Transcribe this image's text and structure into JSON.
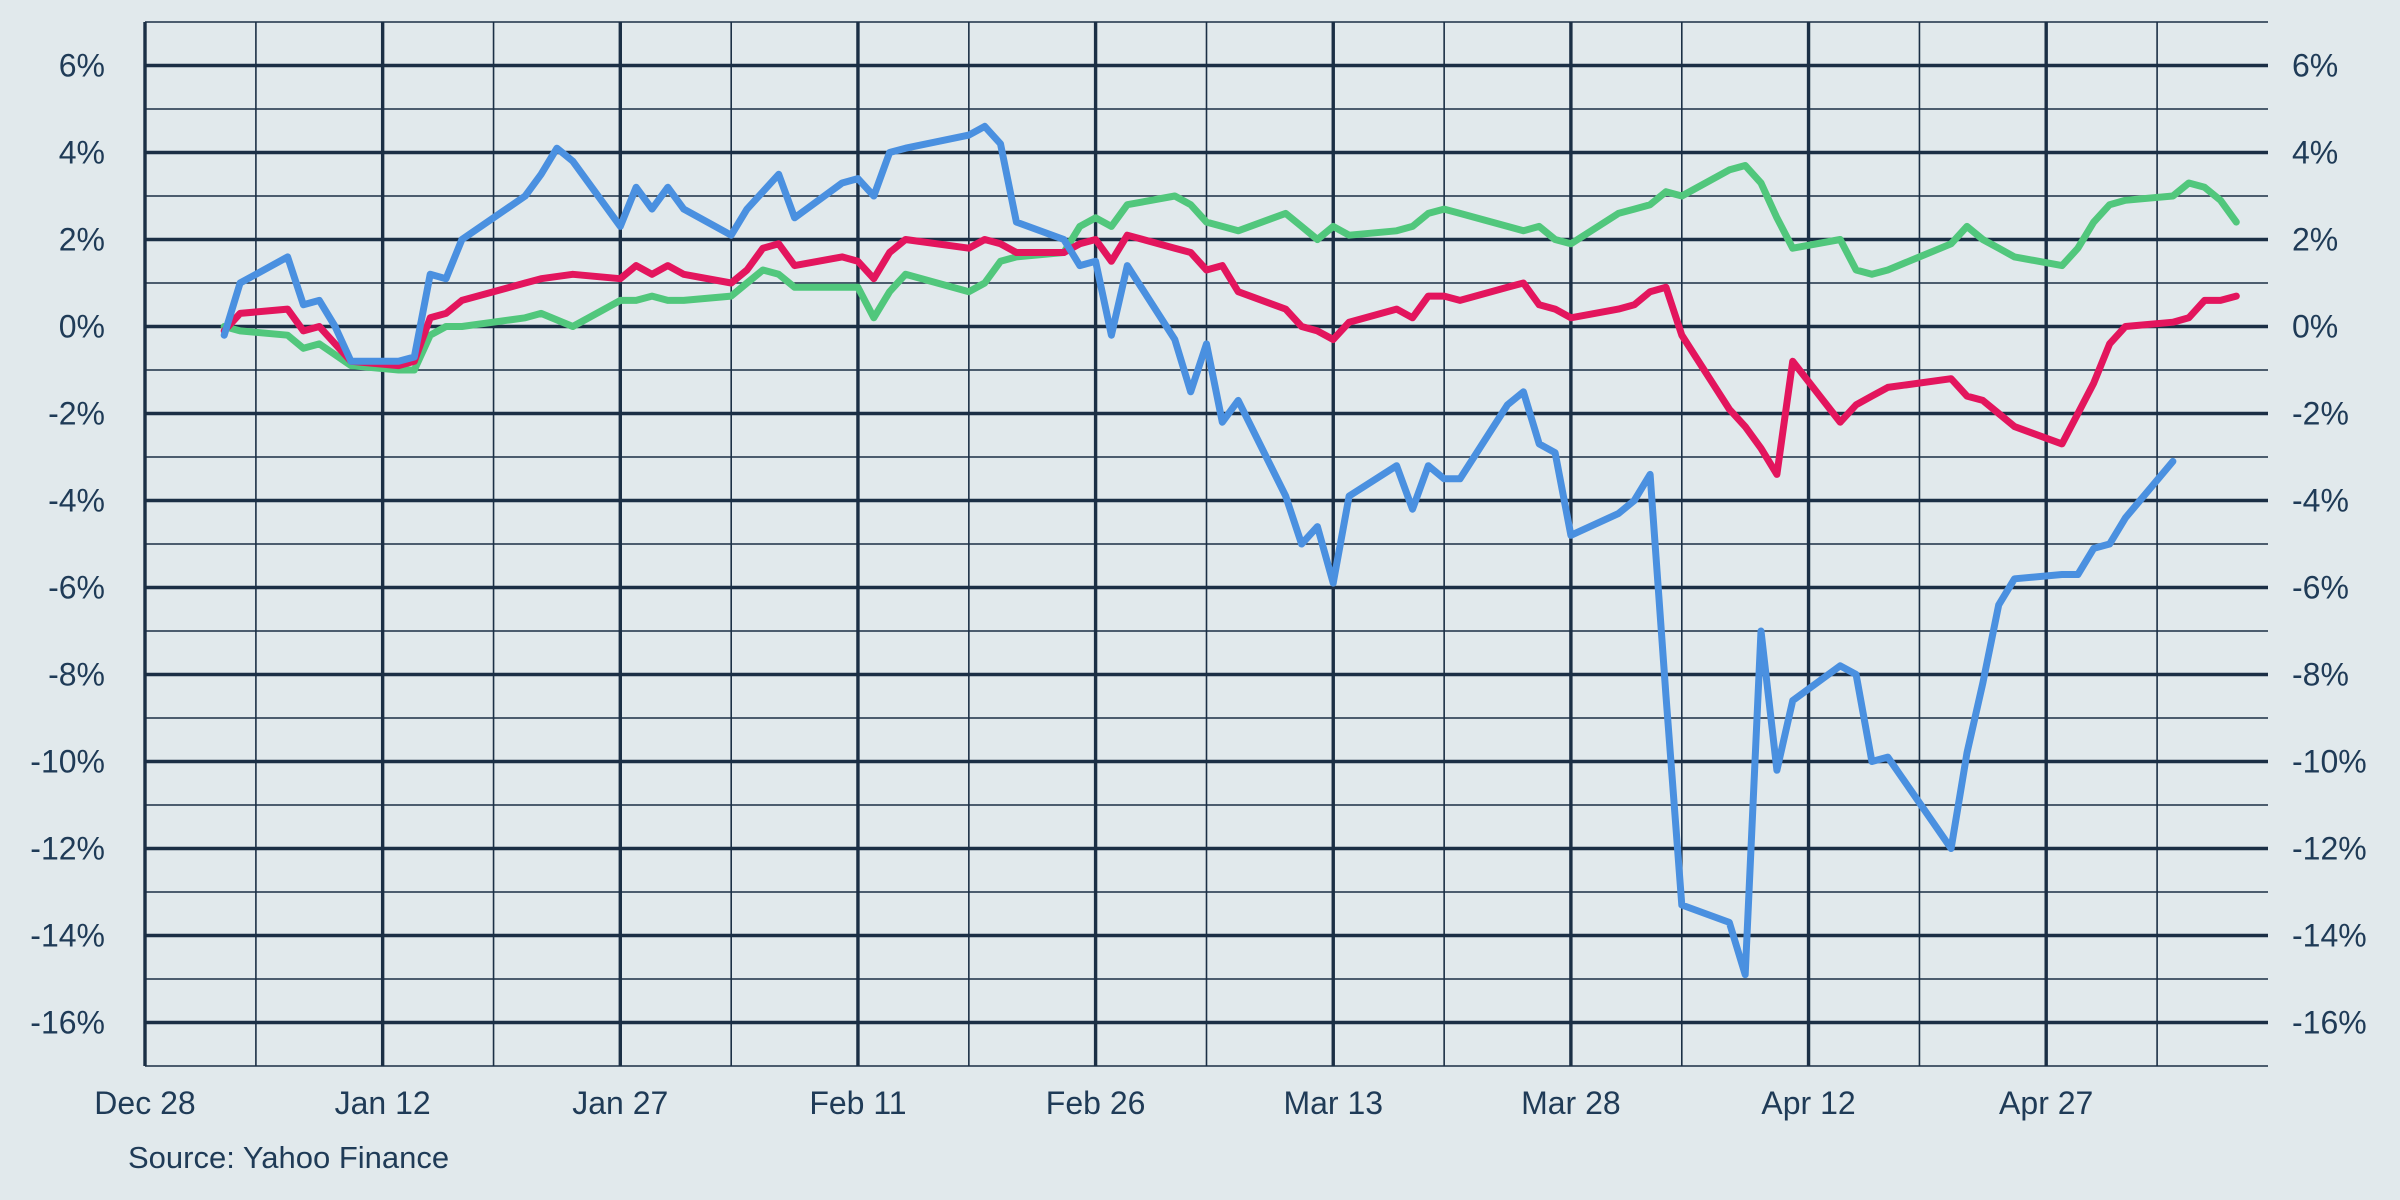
{
  "chart_data": {
    "type": "line",
    "title": "",
    "xlabel": "",
    "ylabel": "",
    "x_domain": [
      "2024-12-28",
      "2025-05-11"
    ],
    "ylim": [
      -17,
      7
    ],
    "x_ticks": [
      {
        "date": "2024-12-28",
        "label": "Dec 28"
      },
      {
        "date": "2025-01-12",
        "label": "Jan 12"
      },
      {
        "date": "2025-01-27",
        "label": "Jan 27"
      },
      {
        "date": "2025-02-11",
        "label": "Feb 11"
      },
      {
        "date": "2025-02-26",
        "label": "Feb 26"
      },
      {
        "date": "2025-03-13",
        "label": "Mar 13"
      },
      {
        "date": "2025-03-28",
        "label": "Mar 28"
      },
      {
        "date": "2025-04-12",
        "label": "Apr 12"
      },
      {
        "date": "2025-04-27",
        "label": "Apr 27"
      }
    ],
    "x_minor_ticks": [
      "2025-01-04",
      "2025-01-19",
      "2025-02-03",
      "2025-02-18",
      "2025-03-05",
      "2025-03-20",
      "2025-04-04",
      "2025-04-19",
      "2025-05-04"
    ],
    "y_ticks": [
      6,
      4,
      2,
      0,
      -2,
      -4,
      -6,
      -8,
      -10,
      -12,
      -14,
      -16
    ],
    "y_tick_labels": [
      "6%",
      "4%",
      "2%",
      "0%",
      "-2%",
      "-4%",
      "-6%",
      "-8%",
      "-10%",
      "-12%",
      "-14%",
      "-16%"
    ],
    "y_axis_both_sides": true,
    "grid": true,
    "series": [
      {
        "color": "#51c77c",
        "points": [
          [
            "2025-01-02",
            0.0
          ],
          [
            "2025-01-03",
            -0.1
          ],
          [
            "2025-01-06",
            -0.2
          ],
          [
            "2025-01-07",
            -0.5
          ],
          [
            "2025-01-08",
            -0.4
          ],
          [
            "2025-01-10",
            -0.9
          ],
          [
            "2025-01-13",
            -1.0
          ],
          [
            "2025-01-14",
            -1.0
          ],
          [
            "2025-01-15",
            -0.2
          ],
          [
            "2025-01-16",
            0.0
          ],
          [
            "2025-01-17",
            0.0
          ],
          [
            "2025-01-21",
            0.2
          ],
          [
            "2025-01-22",
            0.3
          ],
          [
            "2025-01-24",
            0.0
          ],
          [
            "2025-01-27",
            0.6
          ],
          [
            "2025-01-28",
            0.6
          ],
          [
            "2025-01-29",
            0.7
          ],
          [
            "2025-01-30",
            0.6
          ],
          [
            "2025-01-31",
            0.6
          ],
          [
            "2025-02-03",
            0.7
          ],
          [
            "2025-02-04",
            1.0
          ],
          [
            "2025-02-05",
            1.3
          ],
          [
            "2025-02-06",
            1.2
          ],
          [
            "2025-02-07",
            0.9
          ],
          [
            "2025-02-10",
            0.9
          ],
          [
            "2025-02-11",
            0.9
          ],
          [
            "2025-02-12",
            0.2
          ],
          [
            "2025-02-13",
            0.8
          ],
          [
            "2025-02-14",
            1.2
          ],
          [
            "2025-02-18",
            0.8
          ],
          [
            "2025-02-19",
            1.0
          ],
          [
            "2025-02-20",
            1.5
          ],
          [
            "2025-02-21",
            1.6
          ],
          [
            "2025-02-24",
            1.7
          ],
          [
            "2025-02-25",
            2.3
          ],
          [
            "2025-02-26",
            2.5
          ],
          [
            "2025-02-27",
            2.3
          ],
          [
            "2025-02-28",
            2.8
          ],
          [
            "2025-03-03",
            3.0
          ],
          [
            "2025-03-04",
            2.8
          ],
          [
            "2025-03-05",
            2.4
          ],
          [
            "2025-03-06",
            2.3
          ],
          [
            "2025-03-07",
            2.2
          ],
          [
            "2025-03-10",
            2.6
          ],
          [
            "2025-03-11",
            2.3
          ],
          [
            "2025-03-12",
            2.0
          ],
          [
            "2025-03-13",
            2.3
          ],
          [
            "2025-03-14",
            2.1
          ],
          [
            "2025-03-17",
            2.2
          ],
          [
            "2025-03-18",
            2.3
          ],
          [
            "2025-03-19",
            2.6
          ],
          [
            "2025-03-20",
            2.7
          ],
          [
            "2025-03-21",
            2.6
          ],
          [
            "2025-03-24",
            2.3
          ],
          [
            "2025-03-25",
            2.2
          ],
          [
            "2025-03-26",
            2.3
          ],
          [
            "2025-03-27",
            2.0
          ],
          [
            "2025-03-28",
            1.9
          ],
          [
            "2025-03-31",
            2.6
          ],
          [
            "2025-04-01",
            2.7
          ],
          [
            "2025-04-02",
            2.8
          ],
          [
            "2025-04-03",
            3.1
          ],
          [
            "2025-04-04",
            3.0
          ],
          [
            "2025-04-07",
            3.6
          ],
          [
            "2025-04-08",
            3.7
          ],
          [
            "2025-04-09",
            3.3
          ],
          [
            "2025-04-10",
            2.5
          ],
          [
            "2025-04-11",
            1.8
          ],
          [
            "2025-04-14",
            2.0
          ],
          [
            "2025-04-15",
            1.3
          ],
          [
            "2025-04-16",
            1.2
          ],
          [
            "2025-04-17",
            1.3
          ],
          [
            "2025-04-21",
            1.9
          ],
          [
            "2025-04-22",
            2.3
          ],
          [
            "2025-04-23",
            2.0
          ],
          [
            "2025-04-24",
            1.8
          ],
          [
            "2025-04-25",
            1.6
          ],
          [
            "2025-04-28",
            1.4
          ],
          [
            "2025-04-29",
            1.8
          ],
          [
            "2025-04-30",
            2.4
          ],
          [
            "2025-05-01",
            2.8
          ],
          [
            "2025-05-02",
            2.9
          ],
          [
            "2025-05-05",
            3.0
          ],
          [
            "2025-05-06",
            3.3
          ],
          [
            "2025-05-07",
            3.2
          ],
          [
            "2025-05-08",
            2.9
          ],
          [
            "2025-05-09",
            2.4
          ]
        ]
      },
      {
        "color": "#e3155d",
        "points": [
          [
            "2025-01-02",
            -0.1
          ],
          [
            "2025-01-03",
            0.3
          ],
          [
            "2025-01-06",
            0.4
          ],
          [
            "2025-01-07",
            -0.1
          ],
          [
            "2025-01-08",
            0.0
          ],
          [
            "2025-01-10",
            -0.8
          ],
          [
            "2025-01-13",
            -0.9
          ],
          [
            "2025-01-14",
            -0.8
          ],
          [
            "2025-01-15",
            0.2
          ],
          [
            "2025-01-16",
            0.3
          ],
          [
            "2025-01-17",
            0.6
          ],
          [
            "2025-01-21",
            1.0
          ],
          [
            "2025-01-22",
            1.1
          ],
          [
            "2025-01-24",
            1.2
          ],
          [
            "2025-01-27",
            1.1
          ],
          [
            "2025-01-28",
            1.4
          ],
          [
            "2025-01-29",
            1.2
          ],
          [
            "2025-01-30",
            1.4
          ],
          [
            "2025-01-31",
            1.2
          ],
          [
            "2025-02-03",
            1.0
          ],
          [
            "2025-02-04",
            1.3
          ],
          [
            "2025-02-05",
            1.8
          ],
          [
            "2025-02-06",
            1.9
          ],
          [
            "2025-02-07",
            1.4
          ],
          [
            "2025-02-10",
            1.6
          ],
          [
            "2025-02-11",
            1.5
          ],
          [
            "2025-02-12",
            1.1
          ],
          [
            "2025-02-13",
            1.7
          ],
          [
            "2025-02-14",
            2.0
          ],
          [
            "2025-02-18",
            1.8
          ],
          [
            "2025-02-19",
            2.0
          ],
          [
            "2025-02-20",
            1.9
          ],
          [
            "2025-02-21",
            1.7
          ],
          [
            "2025-02-24",
            1.7
          ],
          [
            "2025-02-25",
            1.9
          ],
          [
            "2025-02-26",
            2.0
          ],
          [
            "2025-02-27",
            1.5
          ],
          [
            "2025-02-28",
            2.1
          ],
          [
            "2025-03-03",
            1.8
          ],
          [
            "2025-03-04",
            1.7
          ],
          [
            "2025-03-05",
            1.3
          ],
          [
            "2025-03-06",
            1.4
          ],
          [
            "2025-03-07",
            0.8
          ],
          [
            "2025-03-10",
            0.4
          ],
          [
            "2025-03-11",
            0.0
          ],
          [
            "2025-03-12",
            -0.1
          ],
          [
            "2025-03-13",
            -0.3
          ],
          [
            "2025-03-14",
            0.1
          ],
          [
            "2025-03-17",
            0.4
          ],
          [
            "2025-03-18",
            0.2
          ],
          [
            "2025-03-19",
            0.7
          ],
          [
            "2025-03-20",
            0.7
          ],
          [
            "2025-03-21",
            0.6
          ],
          [
            "2025-03-24",
            0.9
          ],
          [
            "2025-03-25",
            1.0
          ],
          [
            "2025-03-26",
            0.5
          ],
          [
            "2025-03-27",
            0.4
          ],
          [
            "2025-03-28",
            0.2
          ],
          [
            "2025-03-31",
            0.4
          ],
          [
            "2025-04-01",
            0.5
          ],
          [
            "2025-04-02",
            0.8
          ],
          [
            "2025-04-03",
            0.9
          ],
          [
            "2025-04-04",
            -0.2
          ],
          [
            "2025-04-07",
            -1.9
          ],
          [
            "2025-04-08",
            -2.3
          ],
          [
            "2025-04-09",
            -2.8
          ],
          [
            "2025-04-10",
            -3.4
          ],
          [
            "2025-04-11",
            -0.8
          ],
          [
            "2025-04-14",
            -2.2
          ],
          [
            "2025-04-15",
            -1.8
          ],
          [
            "2025-04-16",
            -1.6
          ],
          [
            "2025-04-17",
            -1.4
          ],
          [
            "2025-04-21",
            -1.2
          ],
          [
            "2025-04-22",
            -1.6
          ],
          [
            "2025-04-23",
            -1.7
          ],
          [
            "2025-04-24",
            -2.0
          ],
          [
            "2025-04-25",
            -2.3
          ],
          [
            "2025-04-28",
            -2.7
          ],
          [
            "2025-04-29",
            -2.0
          ],
          [
            "2025-04-30",
            -1.3
          ],
          [
            "2025-05-01",
            -0.4
          ],
          [
            "2025-05-02",
            0.0
          ],
          [
            "2025-05-05",
            0.1
          ],
          [
            "2025-05-06",
            0.2
          ],
          [
            "2025-05-07",
            0.6
          ],
          [
            "2025-05-08",
            0.6
          ],
          [
            "2025-05-09",
            0.7
          ]
        ]
      },
      {
        "color": "#4a90e0",
        "points": [
          [
            "2025-01-02",
            -0.2
          ],
          [
            "2025-01-03",
            1.0
          ],
          [
            "2025-01-06",
            1.6
          ],
          [
            "2025-01-07",
            0.5
          ],
          [
            "2025-01-08",
            0.6
          ],
          [
            "2025-01-09",
            0.0
          ],
          [
            "2025-01-10",
            -0.8
          ],
          [
            "2025-01-13",
            -0.8
          ],
          [
            "2025-01-14",
            -0.7
          ],
          [
            "2025-01-15",
            1.2
          ],
          [
            "2025-01-16",
            1.1
          ],
          [
            "2025-01-17",
            2.0
          ],
          [
            "2025-01-21",
            3.0
          ],
          [
            "2025-01-22",
            3.5
          ],
          [
            "2025-01-23",
            4.1
          ],
          [
            "2025-01-24",
            3.8
          ],
          [
            "2025-01-27",
            2.3
          ],
          [
            "2025-01-28",
            3.2
          ],
          [
            "2025-01-29",
            2.7
          ],
          [
            "2025-01-30",
            3.2
          ],
          [
            "2025-01-31",
            2.7
          ],
          [
            "2025-02-03",
            2.1
          ],
          [
            "2025-02-04",
            2.7
          ],
          [
            "2025-02-05",
            3.1
          ],
          [
            "2025-02-06",
            3.5
          ],
          [
            "2025-02-07",
            2.5
          ],
          [
            "2025-02-10",
            3.3
          ],
          [
            "2025-02-11",
            3.4
          ],
          [
            "2025-02-12",
            3.0
          ],
          [
            "2025-02-13",
            4.0
          ],
          [
            "2025-02-14",
            4.1
          ],
          [
            "2025-02-18",
            4.4
          ],
          [
            "2025-02-19",
            4.6
          ],
          [
            "2025-02-20",
            4.2
          ],
          [
            "2025-02-21",
            2.4
          ],
          [
            "2025-02-24",
            2.0
          ],
          [
            "2025-02-25",
            1.4
          ],
          [
            "2025-02-26",
            1.5
          ],
          [
            "2025-02-27",
            -0.2
          ],
          [
            "2025-02-28",
            1.4
          ],
          [
            "2025-03-03",
            -0.3
          ],
          [
            "2025-03-04",
            -1.5
          ],
          [
            "2025-03-05",
            -0.4
          ],
          [
            "2025-03-06",
            -2.2
          ],
          [
            "2025-03-07",
            -1.7
          ],
          [
            "2025-03-10",
            -3.9
          ],
          [
            "2025-03-11",
            -5.0
          ],
          [
            "2025-03-12",
            -4.6
          ],
          [
            "2025-03-13",
            -5.9
          ],
          [
            "2025-03-14",
            -3.9
          ],
          [
            "2025-03-17",
            -3.2
          ],
          [
            "2025-03-18",
            -4.2
          ],
          [
            "2025-03-19",
            -3.2
          ],
          [
            "2025-03-20",
            -3.5
          ],
          [
            "2025-03-21",
            -3.5
          ],
          [
            "2025-03-24",
            -1.8
          ],
          [
            "2025-03-25",
            -1.5
          ],
          [
            "2025-03-26",
            -2.7
          ],
          [
            "2025-03-27",
            -2.9
          ],
          [
            "2025-03-28",
            -4.8
          ],
          [
            "2025-03-31",
            -4.3
          ],
          [
            "2025-04-01",
            -4.0
          ],
          [
            "2025-04-02",
            -3.4
          ],
          [
            "2025-04-03",
            -8.5
          ],
          [
            "2025-04-04",
            -13.3
          ],
          [
            "2025-04-07",
            -13.7
          ],
          [
            "2025-04-08",
            -14.9
          ],
          [
            "2025-04-09",
            -7.0
          ],
          [
            "2025-04-10",
            -10.2
          ],
          [
            "2025-04-11",
            -8.6
          ],
          [
            "2025-04-14",
            -7.8
          ],
          [
            "2025-04-15",
            -8.0
          ],
          [
            "2025-04-16",
            -10.0
          ],
          [
            "2025-04-17",
            -9.9
          ],
          [
            "2025-04-21",
            -12.0
          ],
          [
            "2025-04-22",
            -9.8
          ],
          [
            "2025-04-23",
            -8.2
          ],
          [
            "2025-04-24",
            -6.4
          ],
          [
            "2025-04-25",
            -5.8
          ],
          [
            "2025-04-28",
            -5.7
          ],
          [
            "2025-04-29",
            -5.7
          ],
          [
            "2025-04-30",
            -5.1
          ],
          [
            "2025-05-01",
            -5.0
          ],
          [
            "2025-05-02",
            -4.4
          ],
          [
            "2025-05-05",
            -3.1
          ]
        ]
      }
    ],
    "source": "Source: Yahoo Finance"
  },
  "colors": {
    "background": "#e1e9ec",
    "grid": "#1b2f45",
    "text": "#1f3b57"
  }
}
